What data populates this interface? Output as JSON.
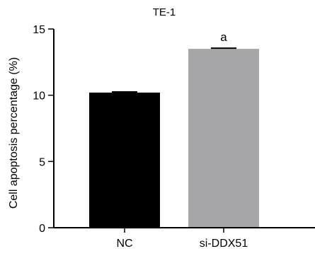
{
  "chart_data": {
    "type": "bar",
    "title": "TE-1",
    "xlabel": "",
    "ylabel": "Cell apoptosis percentage  (%)",
    "categories": [
      "NC",
      "si-DDX51"
    ],
    "values": [
      10.2,
      13.5
    ],
    "errors": [
      0.05,
      0.05
    ],
    "bar_colors": [
      "#000000",
      "#a6a6a8"
    ],
    "annotations": [
      "",
      "a"
    ],
    "ylim": [
      0,
      15
    ],
    "yticks": [
      0,
      5,
      10,
      15
    ],
    "ytick_labels": [
      "0",
      "5",
      "10",
      "15"
    ],
    "grid": false,
    "legend": "none"
  }
}
